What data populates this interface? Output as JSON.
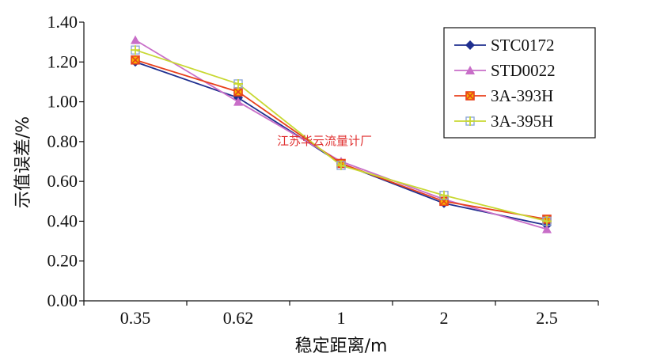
{
  "chart_data": {
    "type": "line",
    "title": "",
    "xlabel": "稳定距离/m",
    "ylabel": "示值误差/%",
    "categories": [
      "0.35",
      "0.62",
      "1",
      "2",
      "2.5"
    ],
    "yticks": [
      "0.00",
      "0.20",
      "0.40",
      "0.60",
      "0.80",
      "1.00",
      "1.20",
      "1.40"
    ],
    "ylim": [
      0,
      1.4
    ],
    "legend_position": "top-right",
    "grid": false,
    "series": [
      {
        "name": "STC0172",
        "values": [
          1.2,
          1.02,
          0.69,
          0.49,
          0.38
        ],
        "color": "#1f2f8f",
        "marker": "diamond"
      },
      {
        "name": "STD0022",
        "values": [
          1.31,
          1.0,
          0.7,
          0.51,
          0.36
        ],
        "color": "#c86ec8",
        "marker": "triangle"
      },
      {
        "name": "3A-393H",
        "values": [
          1.21,
          1.05,
          0.69,
          0.5,
          0.41
        ],
        "color": "#e8401c",
        "marker": "star"
      },
      {
        "name": "3A-395H",
        "values": [
          1.26,
          1.09,
          0.68,
          0.53,
          0.4
        ],
        "color": "#c8d832",
        "marker": "plus"
      }
    ],
    "watermark": "江苏华云流量计厂"
  }
}
